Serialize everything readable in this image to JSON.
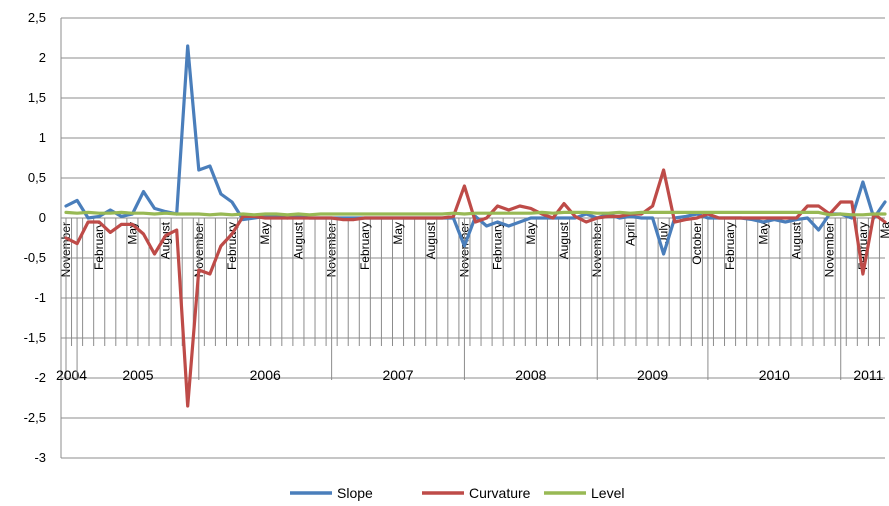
{
  "chart_data": {
    "type": "line",
    "title": "",
    "xlabel": "",
    "ylabel": "",
    "ylim": [
      -3,
      2.5
    ],
    "yticks": [
      "-3",
      "-2,5",
      "-2",
      "-1,5",
      "-1",
      "-0,5",
      "0",
      "0,5",
      "1",
      "1,5",
      "2",
      "2,5"
    ],
    "grid": "horizontal",
    "legend_position": "bottom",
    "month_labels": [
      {
        "label": "November",
        "index": 0
      },
      {
        "label": "February",
        "index": 3
      },
      {
        "label": "May",
        "index": 6
      },
      {
        "label": "August",
        "index": 9
      },
      {
        "label": "November",
        "index": 12
      },
      {
        "label": "February",
        "index": 15
      },
      {
        "label": "May",
        "index": 18
      },
      {
        "label": "August",
        "index": 21
      },
      {
        "label": "November",
        "index": 24
      },
      {
        "label": "February",
        "index": 27
      },
      {
        "label": "May",
        "index": 30
      },
      {
        "label": "August",
        "index": 33
      },
      {
        "label": "November",
        "index": 36
      },
      {
        "label": "February",
        "index": 39
      },
      {
        "label": "May",
        "index": 42
      },
      {
        "label": "August",
        "index": 45
      },
      {
        "label": "November",
        "index": 48
      },
      {
        "label": "April",
        "index": 51
      },
      {
        "label": "July",
        "index": 54
      },
      {
        "label": "October",
        "index": 57
      },
      {
        "label": "February",
        "index": 60
      },
      {
        "label": "May",
        "index": 63
      },
      {
        "label": "August",
        "index": 66
      },
      {
        "label": "November",
        "index": 69
      },
      {
        "label": "February",
        "index": 72
      },
      {
        "label": "Ma",
        "index": 74
      }
    ],
    "year_labels": [
      {
        "label": "2004",
        "from": 0,
        "to": 1
      },
      {
        "label": "2005",
        "from": 1,
        "to": 12
      },
      {
        "label": "2006",
        "from": 12,
        "to": 24
      },
      {
        "label": "2007",
        "from": 24,
        "to": 36
      },
      {
        "label": "2008",
        "from": 36,
        "to": 48
      },
      {
        "label": "2009",
        "from": 48,
        "to": 58
      },
      {
        "label": "2010",
        "from": 58,
        "to": 70
      },
      {
        "label": "2011",
        "from": 70,
        "to": 75
      }
    ],
    "series": [
      {
        "name": "Slope",
        "color": "#4a7ebb",
        "values": [
          0.15,
          0.22,
          0.0,
          0.02,
          0.1,
          0.02,
          0.05,
          0.33,
          0.12,
          0.08,
          0.05,
          2.15,
          0.6,
          0.65,
          0.3,
          0.2,
          -0.02,
          0.0,
          0.02,
          0.02,
          0.0,
          0.02,
          0.0,
          0.0,
          0.0,
          0.0,
          0.0,
          0.0,
          0.0,
          0.0,
          0.0,
          0.0,
          0.0,
          0.0,
          0.0,
          0.0,
          -0.35,
          0.02,
          -0.1,
          -0.05,
          -0.1,
          -0.05,
          0.0,
          0.0,
          0.0,
          0.0,
          0.0,
          0.05,
          0.0,
          0.05,
          0.0,
          0.02,
          0.0,
          0.0,
          -0.45,
          0.0,
          0.02,
          0.05,
          0.0,
          0.0,
          0.0,
          0.0,
          -0.02,
          -0.05,
          -0.02,
          -0.05,
          -0.02,
          0.0,
          -0.15,
          0.05,
          0.05,
          0.0,
          0.45,
          0.0,
          0.2
        ]
      },
      {
        "name": "Curvature",
        "color": "#be4b48",
        "values": [
          -0.25,
          -0.32,
          -0.05,
          -0.05,
          -0.18,
          -0.08,
          -0.08,
          -0.2,
          -0.45,
          -0.22,
          -0.15,
          -2.35,
          -0.65,
          -0.7,
          -0.35,
          -0.2,
          0.02,
          0.02,
          0.0,
          0.0,
          0.0,
          0.0,
          0.0,
          0.0,
          0.0,
          -0.02,
          -0.02,
          0.0,
          0.0,
          0.0,
          0.0,
          0.0,
          0.0,
          0.0,
          0.0,
          0.02,
          0.4,
          -0.05,
          0.0,
          0.15,
          0.1,
          0.15,
          0.12,
          0.05,
          0.0,
          0.18,
          0.02,
          -0.05,
          0.0,
          0.02,
          0.02,
          0.05,
          0.05,
          0.15,
          0.6,
          -0.05,
          -0.02,
          0.0,
          0.05,
          0.0,
          0.0,
          0.0,
          0.0,
          0.0,
          0.0,
          0.0,
          0.0,
          0.15,
          0.15,
          0.05,
          0.2,
          0.2,
          -0.7,
          0.05,
          -0.05
        ]
      },
      {
        "name": "Level",
        "color": "#98b954",
        "values": [
          0.07,
          0.06,
          0.07,
          0.06,
          0.06,
          0.07,
          0.06,
          0.06,
          0.05,
          0.06,
          0.05,
          0.05,
          0.05,
          0.04,
          0.05,
          0.04,
          0.05,
          0.04,
          0.05,
          0.05,
          0.04,
          0.05,
          0.04,
          0.05,
          0.05,
          0.05,
          0.05,
          0.05,
          0.05,
          0.05,
          0.05,
          0.05,
          0.05,
          0.05,
          0.05,
          0.06,
          0.05,
          0.06,
          0.06,
          0.06,
          0.06,
          0.06,
          0.06,
          0.07,
          0.06,
          0.07,
          0.07,
          0.07,
          0.06,
          0.06,
          0.07,
          0.06,
          0.07,
          0.07,
          0.07,
          0.07,
          0.07,
          0.07,
          0.07,
          0.07,
          0.07,
          0.07,
          0.07,
          0.07,
          0.07,
          0.07,
          0.07,
          0.07,
          0.07,
          0.04,
          0.05,
          0.04,
          0.04,
          0.05,
          0.05
        ]
      }
    ]
  }
}
